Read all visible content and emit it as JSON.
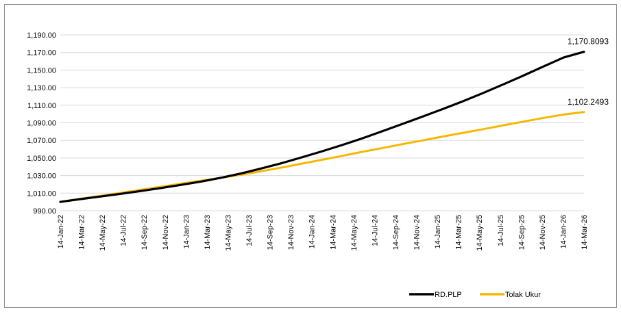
{
  "chart_data": {
    "type": "line",
    "title": "",
    "xlabel": "",
    "ylabel": "",
    "ylim": [
      990,
      1190
    ],
    "yticks": [
      "990.00",
      "1,010.00",
      "1,030.00",
      "1,050.00",
      "1,070.00",
      "1,090.00",
      "1,110.00",
      "1,130.00",
      "1,150.00",
      "1,170.00",
      "1,190.00"
    ],
    "xticks": [
      "14-Jan-22",
      "14-Mar-22",
      "14-May-22",
      "14-Jul-22",
      "14-Sep-22",
      "14-Nov-22",
      "14-Jan-23",
      "14-Mar-23",
      "14-May-23",
      "14-Jul-23",
      "14-Sep-23",
      "14-Nov-23",
      "14-Jan-24",
      "14-Mar-24",
      "14-May-24",
      "14-Jul-24",
      "14-Sep-24",
      "14-Nov-24",
      "14-Jan-25",
      "14-Mar-25",
      "14-May-25",
      "14-Jul-25",
      "14-Sep-25",
      "14-Nov-25",
      "14-Jan-26",
      "14-Mar-26"
    ],
    "grid": "horizontal",
    "legend_position": "bottom-right",
    "series": [
      {
        "name": "RD.PLP",
        "color": "#000000",
        "end_label": "1,170.8093",
        "values": [
          1000.0,
          1003.2,
          1006.2,
          1009.2,
          1012.4,
          1015.8,
          1019.4,
          1023.2,
          1027.6,
          1032.6,
          1038.2,
          1044.2,
          1050.8,
          1057.6,
          1064.8,
          1072.4,
          1080.6,
          1088.8,
          1097.2,
          1105.8,
          1114.6,
          1124.0,
          1133.8,
          1143.8,
          1154.2,
          1164.4,
          1170.8093
        ]
      },
      {
        "name": "Tolak Ukur",
        "color": "#f5b800",
        "end_label": "1,102.2493",
        "values": [
          1000.0,
          1003.6,
          1007.0,
          1010.4,
          1013.8,
          1017.2,
          1020.8,
          1024.2,
          1027.6,
          1031.0,
          1035.0,
          1039.2,
          1043.6,
          1048.0,
          1052.4,
          1057.0,
          1061.4,
          1065.8,
          1070.0,
          1074.4,
          1078.6,
          1082.8,
          1087.2,
          1091.4,
          1095.6,
          1099.4,
          1102.2493
        ]
      }
    ]
  }
}
